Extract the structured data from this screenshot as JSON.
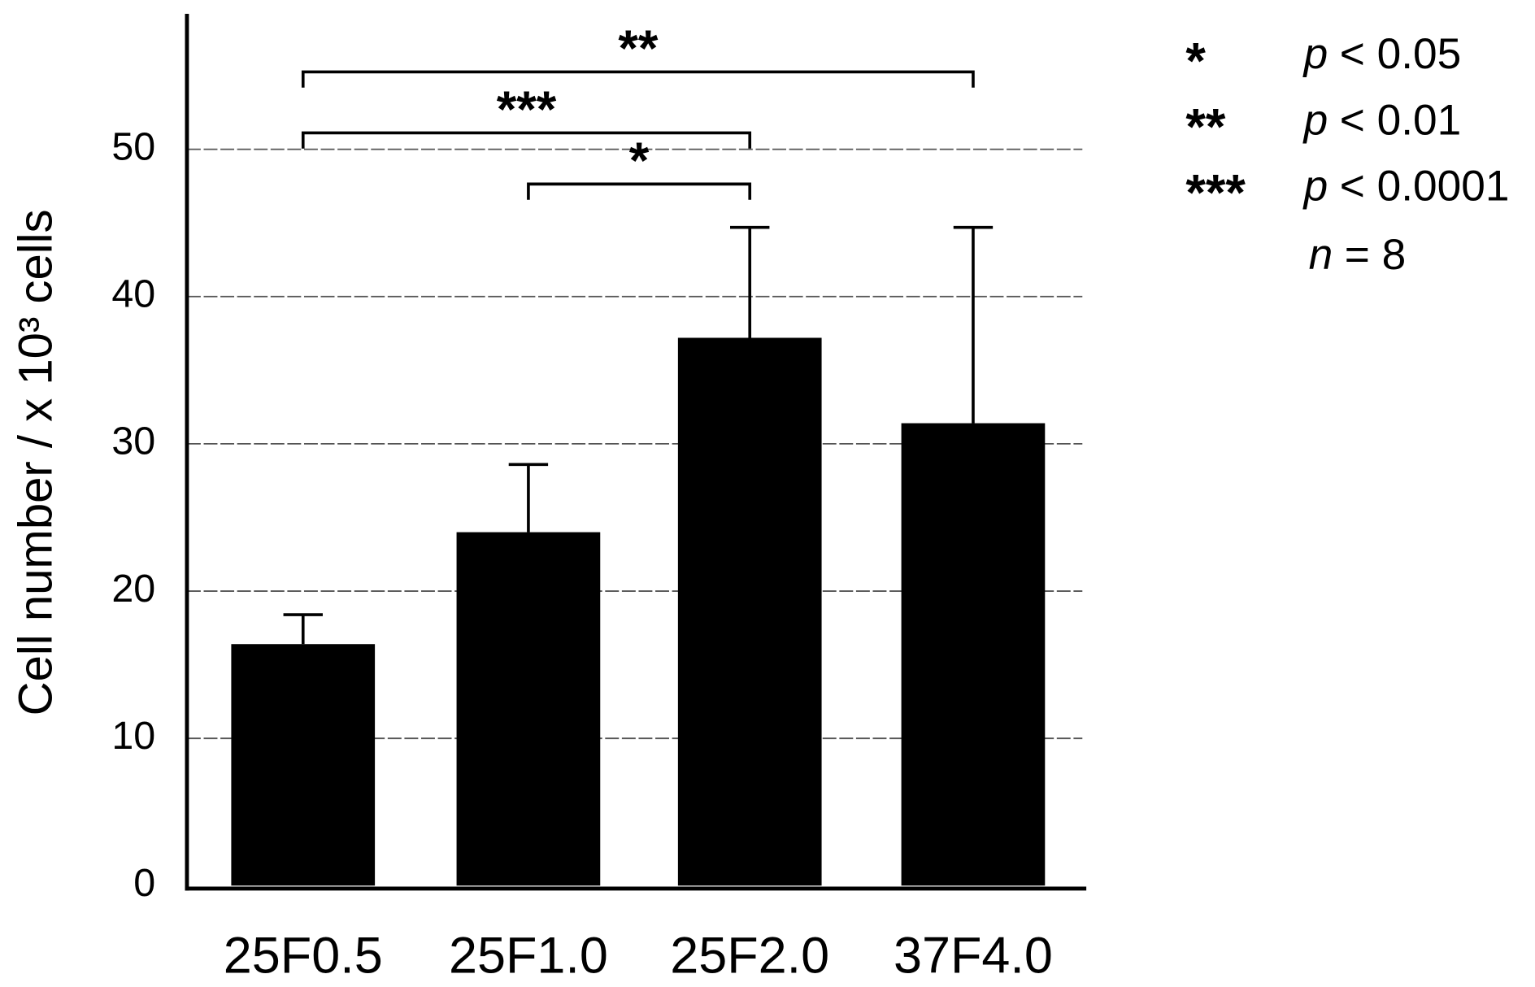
{
  "chart_data": {
    "type": "bar",
    "y_label": "Cell number / x 10³ cells",
    "categories": [
      "25F0.5",
      "25F1.0",
      "25F2.0",
      "37F4.0"
    ],
    "values": [
      16.4,
      24,
      37.2,
      31.4
    ],
    "errors": [
      2.0,
      4.6,
      7.5,
      13.3
    ],
    "color": "#000000",
    "ylim": [
      0,
      59
    ],
    "yticks": [
      0,
      10,
      20,
      30,
      40,
      50
    ],
    "grid": true,
    "significance": [
      {
        "label": "**",
        "between": [
          "25F0.5",
          "37F4.0"
        ]
      },
      {
        "label": "***",
        "between": [
          "25F0.5",
          "25F2.0"
        ]
      },
      {
        "label": "*",
        "between": [
          "25F1.0",
          "25F2.0"
        ]
      }
    ],
    "legend": [
      {
        "symbol": "*",
        "var": "p",
        "text": "< 0.05"
      },
      {
        "symbol": "**",
        "var": "p",
        "text": "< 0.01"
      },
      {
        "symbol": "***",
        "var": "p",
        "text": "< 0.0001"
      },
      {
        "symbol": "",
        "var": "n",
        "text": "= 8"
      }
    ]
  }
}
